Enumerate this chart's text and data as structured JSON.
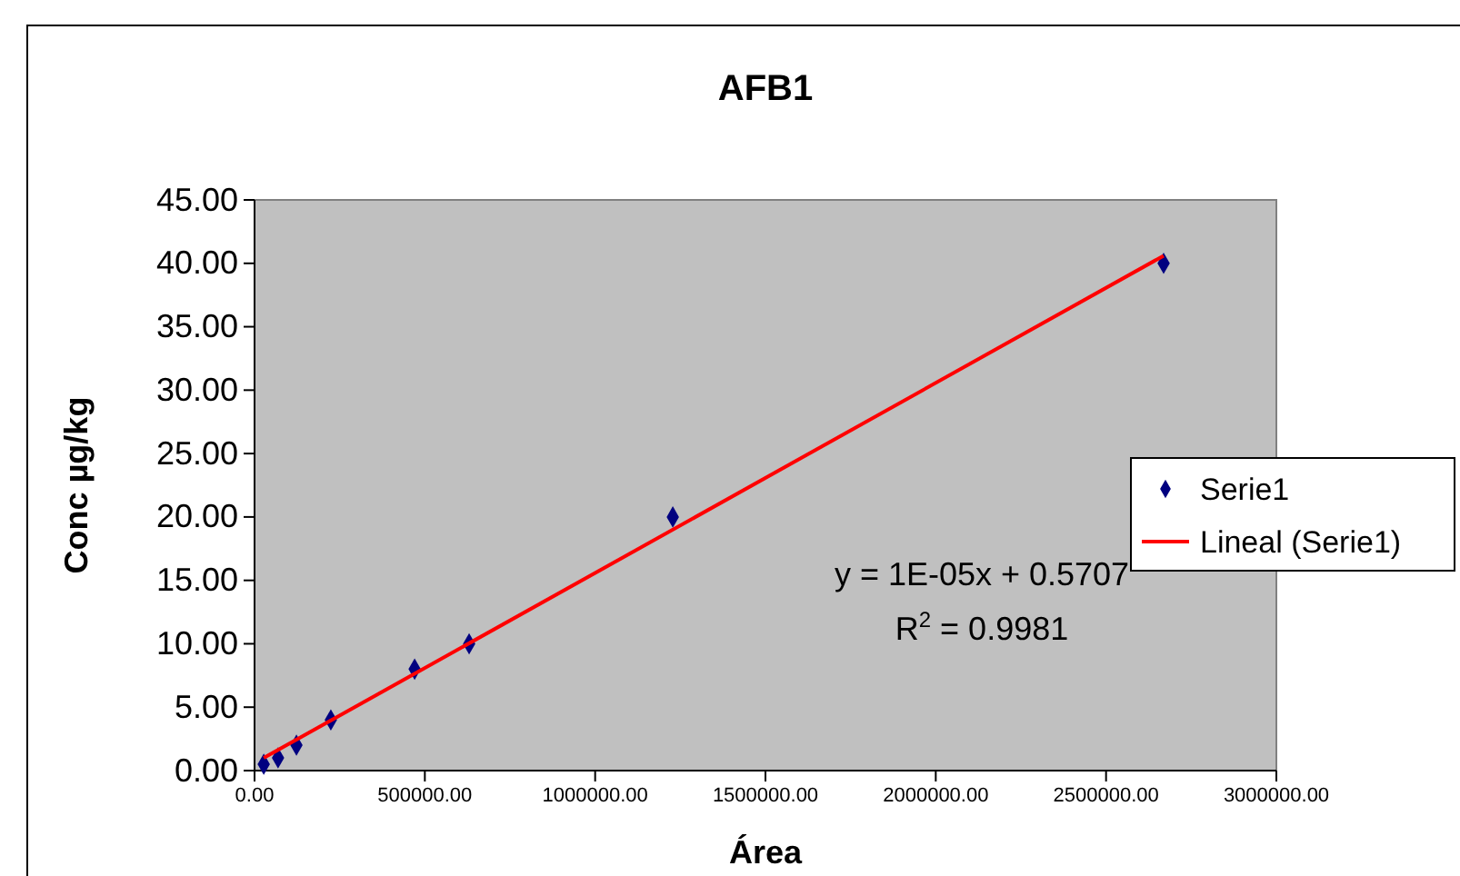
{
  "chart_data": {
    "type": "scatter",
    "title": "AFB1",
    "xlabel": "Área",
    "ylabel": "Conc µg/kg",
    "xlim": [
      0,
      3000000
    ],
    "ylim": [
      0,
      45
    ],
    "xticks": [
      {
        "value": 0,
        "label": "0.00"
      },
      {
        "value": 500000,
        "label": "500000.00"
      },
      {
        "value": 1000000,
        "label": "1000000.00"
      },
      {
        "value": 1500000,
        "label": "1500000.00"
      },
      {
        "value": 2000000,
        "label": "2000000.00"
      },
      {
        "value": 2500000,
        "label": "2500000.00"
      },
      {
        "value": 3000000,
        "label": "3000000.00"
      }
    ],
    "yticks": [
      {
        "value": 0,
        "label": "0.00"
      },
      {
        "value": 5,
        "label": "5.00"
      },
      {
        "value": 10,
        "label": "10.00"
      },
      {
        "value": 15,
        "label": "15.00"
      },
      {
        "value": 20,
        "label": "20.00"
      },
      {
        "value": 25,
        "label": "25.00"
      },
      {
        "value": 30,
        "label": "30.00"
      },
      {
        "value": 35,
        "label": "35.00"
      },
      {
        "value": 40,
        "label": "40.00"
      },
      {
        "value": 45,
        "label": "45.00"
      }
    ],
    "grid": false,
    "legend": "right",
    "series": [
      {
        "name": "Serie1",
        "marker": "diamond",
        "color": "#000080",
        "x": [
          27000,
          69000,
          123000,
          224000,
          470000,
          630000,
          1228000,
          2669000
        ],
        "values": [
          0.5,
          1,
          2,
          4,
          8,
          10,
          20,
          40
        ]
      },
      {
        "name": "Lineal (Serie1)",
        "type": "line",
        "color": "#ff0000",
        "x": [
          27000,
          2669000
        ],
        "values": [
          1.0,
          40.6
        ]
      }
    ],
    "annotations": [
      "y = 1E-05x + 0.5707",
      "R$^{2}$ = 0.9981"
    ]
  }
}
